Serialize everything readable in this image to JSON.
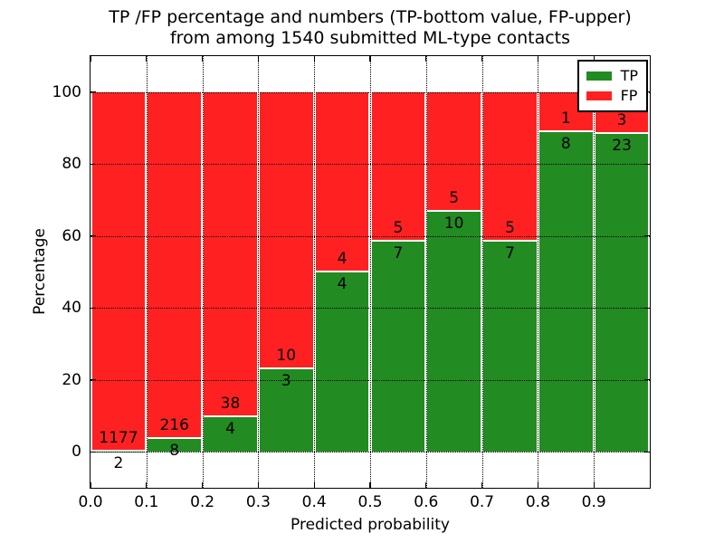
{
  "title": {
    "line1": "TP /FP percentage and numbers (TP-bottom value, FP-upper)",
    "line2": "from among 1540 submitted ML-type contacts"
  },
  "axes": {
    "xlabel": "Predicted probability",
    "ylabel": "Percentage",
    "x_tick_labels": [
      "0.0",
      "0.1",
      "0.2",
      "0.3",
      "0.4",
      "0.5",
      "0.6",
      "0.7",
      "0.8",
      "0.9"
    ],
    "y_tick_labels": [
      "0",
      "20",
      "40",
      "60",
      "80",
      "100"
    ]
  },
  "legend": {
    "items": [
      {
        "label": "TP",
        "color": "#228b22"
      },
      {
        "label": "FP",
        "color": "#ff2121"
      }
    ]
  },
  "colors": {
    "tp_green": "#228b22",
    "fp_red": "#ff2121",
    "grid": "#000000",
    "background": "#ffffff"
  },
  "chart_data": {
    "type": "bar",
    "stacked": true,
    "title": "TP /FP percentage and numbers (TP-bottom value, FP-upper)\nfrom among 1540 submitted ML-type contacts",
    "xlabel": "Predicted probability",
    "ylabel": "Percentage",
    "total_contacts": 1540,
    "bin_edges": [
      0.0,
      0.1,
      0.2,
      0.3,
      0.4,
      0.5,
      0.6,
      0.7,
      0.8,
      0.9,
      1.0
    ],
    "series": [
      {
        "name": "TP",
        "color": "#228b22",
        "counts": [
          2,
          8,
          4,
          3,
          4,
          7,
          10,
          7,
          8,
          23
        ],
        "pct_of_bin": [
          0.17,
          3.57,
          9.52,
          23.08,
          50.0,
          58.33,
          66.67,
          58.33,
          88.89,
          88.46
        ]
      },
      {
        "name": "FP",
        "color": "#ff2121",
        "counts": [
          1177,
          216,
          38,
          10,
          4,
          5,
          5,
          5,
          1,
          3
        ],
        "pct_of_bin": [
          99.83,
          96.43,
          90.48,
          76.92,
          50.0,
          41.67,
          33.33,
          41.67,
          11.11,
          11.54
        ]
      }
    ],
    "annotation_note": "FP count printed above TP/FP boundary, TP count printed below it, per bin",
    "xlim": [
      0.0,
      1.0
    ],
    "ylim": [
      -10,
      110
    ],
    "x_ticks": [
      0.0,
      0.1,
      0.2,
      0.3,
      0.4,
      0.5,
      0.6,
      0.7,
      0.8,
      0.9
    ],
    "y_ticks": [
      0,
      20,
      40,
      60,
      80,
      100
    ],
    "grid": "dotted",
    "legend_position": "upper right"
  }
}
